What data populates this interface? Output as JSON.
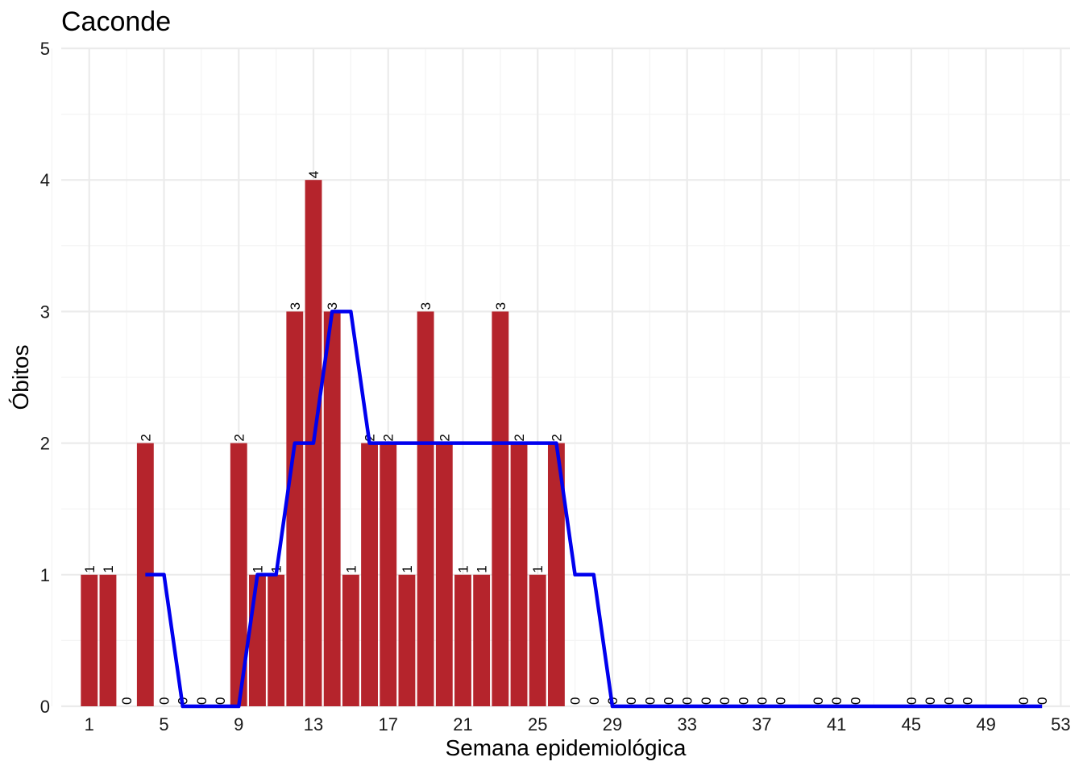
{
  "chart_data": {
    "type": "bar",
    "title": "Caconde",
    "xlabel": "Semana epidemiológica",
    "ylabel": "Óbitos",
    "xlim": [
      -0.5,
      53.5
    ],
    "ylim": [
      0,
      5
    ],
    "x_ticks": [
      1,
      5,
      9,
      13,
      17,
      21,
      25,
      29,
      33,
      37,
      41,
      45,
      49,
      53
    ],
    "y_ticks": [
      0,
      1,
      2,
      3,
      4,
      5
    ],
    "grid": true,
    "colors": {
      "bar": "#B5242C",
      "line": "#0000EE",
      "grid_major": "#EBEBEB",
      "grid_minor": "#F4F4F4"
    },
    "series": [
      {
        "kind": "bar",
        "x": [
          1,
          2,
          3,
          4,
          5,
          6,
          7,
          8,
          9,
          10,
          11,
          12,
          13,
          14,
          15,
          16,
          17,
          18,
          19,
          20,
          21,
          22,
          23,
          24,
          25,
          26,
          27,
          28,
          29,
          30,
          31,
          32,
          33,
          34,
          35,
          36,
          37,
          38,
          40,
          41,
          42,
          45,
          46,
          47,
          48,
          51,
          52
        ],
        "values": [
          1,
          1,
          0,
          2,
          0,
          0,
          0,
          0,
          2,
          1,
          1,
          3,
          4,
          3,
          1,
          2,
          2,
          1,
          3,
          2,
          1,
          1,
          3,
          2,
          1,
          2,
          0,
          0,
          0,
          0,
          0,
          0,
          0,
          0,
          0,
          0,
          0,
          0,
          0,
          0,
          0,
          0,
          0,
          0,
          0,
          0,
          0
        ]
      },
      {
        "kind": "line",
        "x": [
          4,
          5,
          6,
          7,
          8,
          9,
          10,
          11,
          12,
          13,
          14,
          15,
          16,
          17,
          18,
          19,
          20,
          21,
          22,
          23,
          24,
          25,
          26,
          27,
          28,
          29,
          30,
          31,
          32,
          33,
          34,
          35,
          36,
          37,
          38,
          39,
          40,
          41,
          42,
          43,
          44,
          45,
          46,
          47,
          48,
          49,
          50,
          51,
          52
        ],
        "values": [
          1,
          1,
          0,
          0,
          0,
          0,
          1,
          1,
          2,
          2,
          3,
          3,
          2,
          2,
          2,
          2,
          2,
          2,
          2,
          2,
          2,
          2,
          2,
          1,
          1,
          0,
          0,
          0,
          0,
          0,
          0,
          0,
          0,
          0,
          0,
          0,
          0,
          0,
          0,
          0,
          0,
          0,
          0,
          0,
          0,
          0,
          0,
          0,
          0
        ]
      }
    ]
  }
}
